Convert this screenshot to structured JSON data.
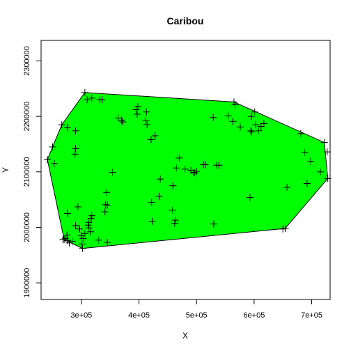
{
  "chart_data": {
    "type": "scatter",
    "title": "Caribou",
    "xlabel": "X",
    "ylabel": "Y",
    "xlim": [
      230000,
      732000
    ],
    "ylim": [
      1870000,
      2337000
    ],
    "xticks": [
      {
        "value": 300000,
        "label": "3e+05"
      },
      {
        "value": 400000,
        "label": "4e+05"
      },
      {
        "value": 500000,
        "label": "5e+05"
      },
      {
        "value": 600000,
        "label": "6e+05"
      },
      {
        "value": 700000,
        "label": "7e+05"
      }
    ],
    "yticks": [
      {
        "value": 1900000,
        "label": "1900000"
      },
      {
        "value": 2000000,
        "label": "2000000"
      },
      {
        "value": 2100000,
        "label": "2100000"
      },
      {
        "value": 2200000,
        "label": "2200000"
      },
      {
        "value": 2300000,
        "label": "2300000"
      }
    ],
    "grid": false,
    "hull_color": "#00ff00",
    "point_marker": "+",
    "hull": [
      [
        306000,
        2243000
      ],
      [
        565000,
        2226000
      ],
      [
        722000,
        2153000
      ],
      [
        728000,
        2088000
      ],
      [
        654000,
        1998000
      ],
      [
        302000,
        1962000
      ],
      [
        270000,
        1978000
      ],
      [
        241000,
        2122000
      ],
      [
        250000,
        2145000
      ],
      [
        266000,
        2185000
      ]
    ],
    "points": [
      [
        306000,
        2243000
      ],
      [
        318000,
        2233000
      ],
      [
        310000,
        2230000
      ],
      [
        332000,
        2230000
      ],
      [
        336000,
        2230000
      ],
      [
        565000,
        2226000
      ],
      [
        567000,
        2221000
      ],
      [
        398000,
        2218000
      ],
      [
        395000,
        2212000
      ],
      [
        397000,
        2204000
      ],
      [
        413000,
        2208000
      ],
      [
        364000,
        2197000
      ],
      [
        370000,
        2193000
      ],
      [
        372000,
        2190000
      ],
      [
        412000,
        2193000
      ],
      [
        414000,
        2185000
      ],
      [
        421000,
        2158000
      ],
      [
        428000,
        2165000
      ],
      [
        266000,
        2185000
      ],
      [
        276000,
        2180000
      ],
      [
        290000,
        2174000
      ],
      [
        250000,
        2145000
      ],
      [
        290000,
        2142000
      ],
      [
        289000,
        2132000
      ],
      [
        241000,
        2122000
      ],
      [
        253000,
        2115000
      ],
      [
        354000,
        2099000
      ],
      [
        470000,
        2125000
      ],
      [
        465000,
        2107000
      ],
      [
        480000,
        2105000
      ],
      [
        490000,
        2103000
      ],
      [
        495000,
        2099000
      ],
      [
        497000,
        2098000
      ],
      [
        500000,
        2101000
      ],
      [
        512000,
        2113000
      ],
      [
        515000,
        2113000
      ],
      [
        535000,
        2112000
      ],
      [
        539000,
        2112000
      ],
      [
        437000,
        2087000
      ],
      [
        459000,
        2075000
      ],
      [
        344000,
        2063000
      ],
      [
        435000,
        2056000
      ],
      [
        422000,
        2045000
      ],
      [
        458000,
        2031000
      ],
      [
        463000,
        2013000
      ],
      [
        462000,
        2007000
      ],
      [
        423000,
        2011000
      ],
      [
        345000,
        2040000
      ],
      [
        342000,
        2041000
      ],
      [
        341000,
        2028000
      ],
      [
        294000,
        2037000
      ],
      [
        276000,
        2025000
      ],
      [
        318000,
        2021000
      ],
      [
        317000,
        2016000
      ],
      [
        313000,
        2009000
      ],
      [
        312000,
        2004000
      ],
      [
        313000,
        1999000
      ],
      [
        290000,
        2003000
      ],
      [
        297000,
        1997000
      ],
      [
        316000,
        1992000
      ],
      [
        306000,
        1989000
      ],
      [
        300000,
        1985000
      ],
      [
        303000,
        1980000
      ],
      [
        275000,
        1986000
      ],
      [
        272000,
        1980000
      ],
      [
        276000,
        1976000
      ],
      [
        270000,
        1978000
      ],
      [
        268000,
        1978000
      ],
      [
        279000,
        1972000
      ],
      [
        284000,
        1975000
      ],
      [
        301000,
        1970000
      ],
      [
        302000,
        1962000
      ],
      [
        330000,
        1977000
      ],
      [
        345000,
        1973000
      ],
      [
        530000,
        2006000
      ],
      [
        529000,
        2198000
      ],
      [
        555000,
        2201000
      ],
      [
        563000,
        2191000
      ],
      [
        576000,
        2181000
      ],
      [
        595000,
        2200000
      ],
      [
        601000,
        2208000
      ],
      [
        594000,
        2174000
      ],
      [
        596000,
        2172000
      ],
      [
        603000,
        2185000
      ],
      [
        608000,
        2174000
      ],
      [
        612000,
        2182000
      ],
      [
        617000,
        2187000
      ],
      [
        593000,
        2054000
      ],
      [
        650000,
        1997000
      ],
      [
        654000,
        1998000
      ],
      [
        657000,
        2072000
      ],
      [
        681000,
        2169000
      ],
      [
        688000,
        2135000
      ],
      [
        692000,
        2079000
      ],
      [
        698000,
        2119000
      ],
      [
        715000,
        2100000
      ],
      [
        722000,
        2153000
      ],
      [
        727000,
        2136000
      ],
      [
        728000,
        2088000
      ]
    ]
  }
}
